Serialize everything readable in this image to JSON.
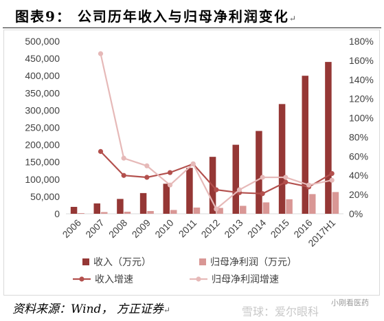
{
  "title": "图表9：  公司历年收入与归母净利润变化",
  "title_mark": "↵",
  "footer": "资料来源：Wind， 方正证券",
  "footer_mark": "↵",
  "watermark": {
    "main": "雪球：爱尔眼科",
    "sub": "小刚看医药"
  },
  "chart_data": {
    "type": "bar",
    "categories": [
      "2006",
      "2007",
      "2008",
      "2009",
      "2010",
      "2011",
      "2012",
      "2013",
      "2014",
      "2015",
      "2016",
      "2017H1"
    ],
    "series": [
      {
        "name": "收入（万元）",
        "type": "bar",
        "axis": "left",
        "color": "#953735",
        "values": [
          20000,
          30000,
          43000,
          60000,
          87000,
          133000,
          165000,
          200000,
          240000,
          318000,
          400000,
          440000
        ]
      },
      {
        "name": "归母净利润（万元）",
        "type": "bar",
        "axis": "left",
        "color": "#d99795",
        "values": [
          2000,
          5000,
          6000,
          8000,
          11000,
          18000,
          17000,
          23000,
          33000,
          42000,
          57000,
          63000
        ]
      },
      {
        "name": "收入增速",
        "type": "line",
        "axis": "right",
        "unit": "%",
        "color": "#b3504d",
        "values": [
          null,
          65,
          40,
          38,
          43,
          52,
          25,
          22,
          21,
          33,
          28,
          42
        ]
      },
      {
        "name": "归母净利润增速",
        "type": "line",
        "axis": "right",
        "unit": "%",
        "color": "#e6b9b8",
        "values": [
          null,
          167,
          58,
          50,
          30,
          52,
          5,
          25,
          38,
          38,
          30,
          35
        ]
      }
    ],
    "y_left": {
      "lim": [
        0,
        500000
      ],
      "ticks": [
        "0",
        "50,000",
        "100,000",
        "150,000",
        "200,000",
        "250,000",
        "300,000",
        "350,000",
        "400,000",
        "450,000",
        "500,000"
      ]
    },
    "y_right": {
      "lim": [
        0,
        180
      ],
      "ticks": [
        "0%",
        "20%",
        "40%",
        "60%",
        "80%",
        "100%",
        "120%",
        "140%",
        "160%",
        "180%"
      ]
    },
    "grid": false,
    "legend_position": "bottom"
  }
}
